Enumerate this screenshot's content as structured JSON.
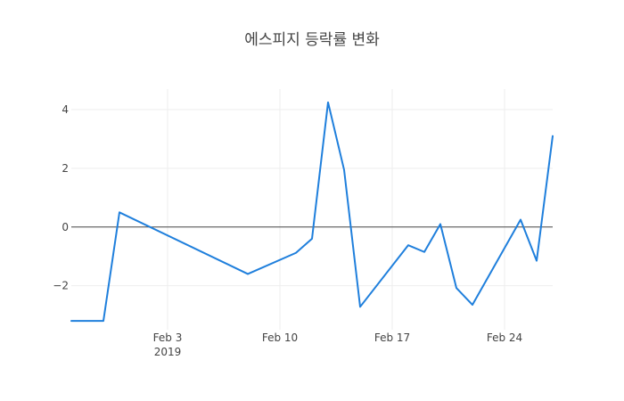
{
  "chart_data": {
    "type": "line",
    "title": "에스피지 등락률 변화",
    "xlabel": "",
    "ylabel": "",
    "x": [
      "2019-01-28",
      "2019-01-29",
      "2019-01-30",
      "2019-01-31",
      "2019-02-08",
      "2019-02-11",
      "2019-02-12",
      "2019-02-13",
      "2019-02-14",
      "2019-02-15",
      "2019-02-18",
      "2019-02-19",
      "2019-02-20",
      "2019-02-21",
      "2019-02-22",
      "2019-02-25",
      "2019-02-26",
      "2019-02-27"
    ],
    "series": [
      {
        "values": [
          -3.2,
          -3.2,
          -3.2,
          0.5,
          -1.6,
          -0.88,
          -0.4,
          4.25,
          1.95,
          -2.72,
          -0.62,
          -0.85,
          0.1,
          -2.08,
          -2.65,
          0.25,
          -1.15,
          3.1
        ]
      }
    ],
    "xlim": [
      "2019-01-28",
      "2019-02-27"
    ],
    "ylim": [
      -3.5,
      4.7
    ],
    "xticks": [
      {
        "date": "2019-02-03",
        "label": "Feb 3",
        "sublabel": "2019"
      },
      {
        "date": "2019-02-10",
        "label": "Feb 10",
        "sublabel": ""
      },
      {
        "date": "2019-02-17",
        "label": "Feb 17",
        "sublabel": ""
      },
      {
        "date": "2019-02-24",
        "label": "Feb 24",
        "sublabel": ""
      }
    ],
    "yticks": [
      {
        "value": 4,
        "label": "4"
      },
      {
        "value": 2,
        "label": "2"
      },
      {
        "value": 0,
        "label": "0"
      },
      {
        "value": -2,
        "label": "−2"
      }
    ],
    "grid": true,
    "zero_line": true,
    "colors": {
      "line": "#1f7fdc",
      "grid": "#eeeeee",
      "zero": "#444444"
    }
  }
}
